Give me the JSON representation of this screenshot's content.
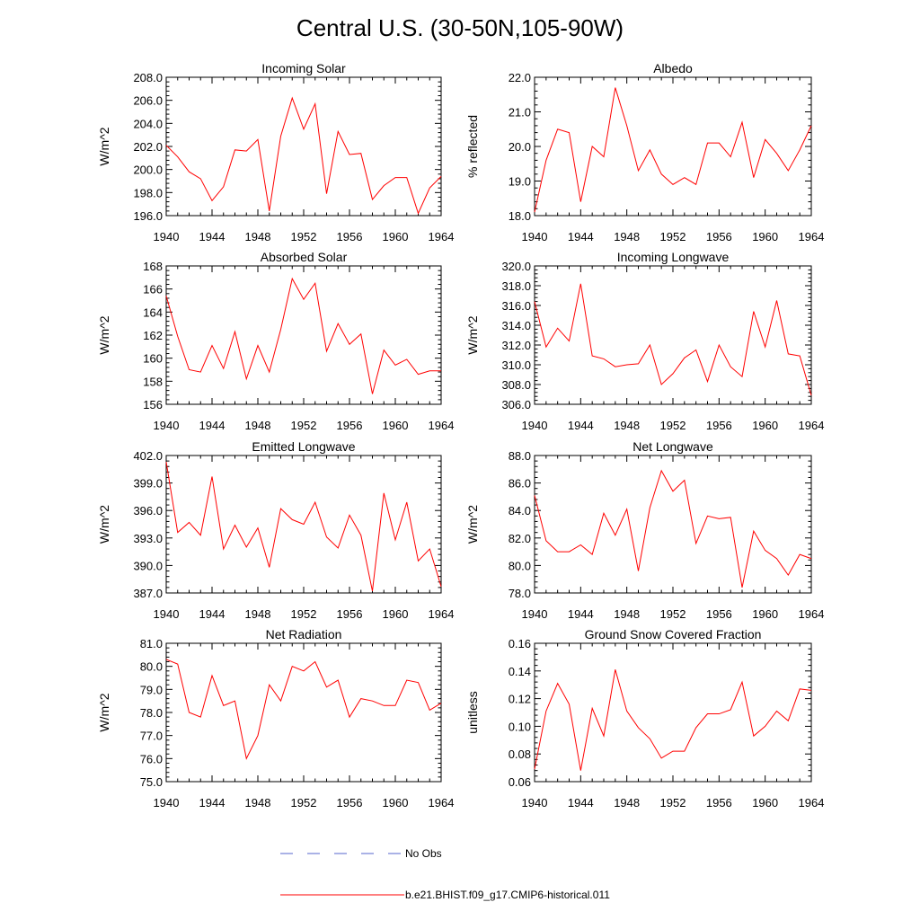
{
  "title": "Central U.S. (30-50N,105-90W)",
  "legend": {
    "obs_label": "No Obs",
    "obs_color": "#5566cc",
    "model_label": "b.e21.BHIST.f09_g17.CMIP6-historical.011",
    "model_color": "#ff0000"
  },
  "chart_data": [
    {
      "type": "line",
      "title": "Incoming Solar",
      "ylabel": "W/m^2",
      "x": [
        1940,
        1941,
        1942,
        1943,
        1944,
        1945,
        1946,
        1947,
        1948,
        1949,
        1950,
        1951,
        1952,
        1953,
        1954,
        1955,
        1956,
        1957,
        1958,
        1959,
        1960,
        1961,
        1962,
        1963,
        1964
      ],
      "xlim": [
        1940,
        1964
      ],
      "xticks": [
        "1940",
        "1944",
        "1948",
        "1952",
        "1956",
        "1960",
        "1964"
      ],
      "ylim": [
        196.0,
        208.0
      ],
      "yticks": [
        "196.0",
        "198.0",
        "200.0",
        "202.0",
        "204.0",
        "206.0",
        "208.0"
      ],
      "series": [
        {
          "values": [
            202.1,
            201.1,
            199.8,
            199.2,
            197.3,
            198.5,
            201.7,
            201.6,
            202.6,
            196.4,
            202.9,
            206.2,
            203.5,
            205.7,
            197.9,
            203.3,
            201.3,
            201.4,
            197.4,
            198.6,
            199.3,
            199.3,
            196.2,
            198.4,
            199.4
          ]
        }
      ]
    },
    {
      "type": "line",
      "title": "Albedo",
      "ylabel": "% reflected",
      "x": [
        1940,
        1941,
        1942,
        1943,
        1944,
        1945,
        1946,
        1947,
        1948,
        1949,
        1950,
        1951,
        1952,
        1953,
        1954,
        1955,
        1956,
        1957,
        1958,
        1959,
        1960,
        1961,
        1962,
        1963,
        1964
      ],
      "xlim": [
        1940,
        1964
      ],
      "xticks": [
        "1940",
        "1944",
        "1948",
        "1952",
        "1956",
        "1960",
        "1964"
      ],
      "ylim": [
        18.0,
        22.0
      ],
      "yticks": [
        "18.0",
        "19.0",
        "20.0",
        "21.0",
        "22.0"
      ],
      "series": [
        {
          "values": [
            18.1,
            19.6,
            20.5,
            20.4,
            18.4,
            20.0,
            19.7,
            21.7,
            20.6,
            19.3,
            19.9,
            19.2,
            18.9,
            19.1,
            18.9,
            20.1,
            20.1,
            19.7,
            20.7,
            19.1,
            20.2,
            19.8,
            19.3,
            19.9,
            20.6
          ]
        }
      ]
    },
    {
      "type": "line",
      "title": "Absorbed Solar",
      "ylabel": "W/m^2",
      "x": [
        1940,
        1941,
        1942,
        1943,
        1944,
        1945,
        1946,
        1947,
        1948,
        1949,
        1950,
        1951,
        1952,
        1953,
        1954,
        1955,
        1956,
        1957,
        1958,
        1959,
        1960,
        1961,
        1962,
        1963,
        1964
      ],
      "xlim": [
        1940,
        1964
      ],
      "xticks": [
        "1940",
        "1944",
        "1948",
        "1952",
        "1956",
        "1960",
        "1964"
      ],
      "ylim": [
        156,
        168
      ],
      "yticks": [
        "156",
        "158",
        "160",
        "162",
        "164",
        "166",
        "168"
      ],
      "series": [
        {
          "values": [
            165.4,
            161.9,
            159.0,
            158.8,
            161.1,
            159.1,
            162.3,
            158.2,
            161.1,
            158.8,
            162.5,
            166.9,
            165.1,
            166.5,
            160.6,
            163.0,
            161.2,
            162.1,
            156.9,
            160.7,
            159.4,
            159.9,
            158.6,
            158.9,
            158.9
          ]
        }
      ]
    },
    {
      "type": "line",
      "title": "Incoming Longwave",
      "ylabel": "W/m^2",
      "x": [
        1940,
        1941,
        1942,
        1943,
        1944,
        1945,
        1946,
        1947,
        1948,
        1949,
        1950,
        1951,
        1952,
        1953,
        1954,
        1955,
        1956,
        1957,
        1958,
        1959,
        1960,
        1961,
        1962,
        1963,
        1964
      ],
      "xlim": [
        1940,
        1964
      ],
      "xticks": [
        "1940",
        "1944",
        "1948",
        "1952",
        "1956",
        "1960",
        "1964"
      ],
      "ylim": [
        306.0,
        320.0
      ],
      "yticks": [
        "306.0",
        "308.0",
        "310.0",
        "312.0",
        "314.0",
        "316.0",
        "318.0",
        "320.0"
      ],
      "series": [
        {
          "values": [
            316.4,
            311.8,
            313.7,
            312.4,
            318.2,
            310.9,
            310.6,
            309.8,
            310.0,
            310.1,
            312.0,
            308.0,
            309.1,
            310.7,
            311.5,
            308.3,
            312.0,
            309.8,
            308.8,
            315.4,
            311.8,
            316.5,
            311.1,
            310.9,
            306.9
          ]
        }
      ]
    },
    {
      "type": "line",
      "title": "Emitted Longwave",
      "ylabel": "W/m^2",
      "x": [
        1940,
        1941,
        1942,
        1943,
        1944,
        1945,
        1946,
        1947,
        1948,
        1949,
        1950,
        1951,
        1952,
        1953,
        1954,
        1955,
        1956,
        1957,
        1958,
        1959,
        1960,
        1961,
        1962,
        1963,
        1964
      ],
      "xlim": [
        1940,
        1964
      ],
      "xticks": [
        "1940",
        "1944",
        "1948",
        "1952",
        "1956",
        "1960",
        "1964"
      ],
      "ylim": [
        387.0,
        402.0
      ],
      "yticks": [
        "387.0",
        "390.0",
        "393.0",
        "396.0",
        "399.0",
        "402.0"
      ],
      "series": [
        {
          "values": [
            401.3,
            393.6,
            394.7,
            393.3,
            399.7,
            391.8,
            394.4,
            392.0,
            394.1,
            389.8,
            396.2,
            395.0,
            394.5,
            396.9,
            393.1,
            391.9,
            395.5,
            393.3,
            387.2,
            397.9,
            392.8,
            396.9,
            390.5,
            391.8,
            387.7
          ]
        }
      ]
    },
    {
      "type": "line",
      "title": "Net Longwave",
      "ylabel": "W/m^2",
      "x": [
        1940,
        1941,
        1942,
        1943,
        1944,
        1945,
        1946,
        1947,
        1948,
        1949,
        1950,
        1951,
        1952,
        1953,
        1954,
        1955,
        1956,
        1957,
        1958,
        1959,
        1960,
        1961,
        1962,
        1963,
        1964
      ],
      "xlim": [
        1940,
        1964
      ],
      "xticks": [
        "1940",
        "1944",
        "1948",
        "1952",
        "1956",
        "1960",
        "1964"
      ],
      "ylim": [
        78.0,
        88.0
      ],
      "yticks": [
        "78.0",
        "80.0",
        "82.0",
        "84.0",
        "86.0",
        "88.0"
      ],
      "series": [
        {
          "values": [
            85.1,
            81.8,
            81.0,
            81.0,
            81.5,
            80.8,
            83.8,
            82.2,
            84.1,
            79.6,
            84.2,
            86.9,
            85.4,
            86.2,
            81.6,
            83.6,
            83.4,
            83.5,
            78.4,
            82.5,
            81.1,
            80.5,
            79.3,
            80.8,
            80.5
          ]
        }
      ]
    },
    {
      "type": "line",
      "title": "Net Radiation",
      "ylabel": "W/m^2",
      "x": [
        1940,
        1941,
        1942,
        1943,
        1944,
        1945,
        1946,
        1947,
        1948,
        1949,
        1950,
        1951,
        1952,
        1953,
        1954,
        1955,
        1956,
        1957,
        1958,
        1959,
        1960,
        1961,
        1962,
        1963,
        1964
      ],
      "xlim": [
        1940,
        1964
      ],
      "xticks": [
        "1940",
        "1944",
        "1948",
        "1952",
        "1956",
        "1960",
        "1964"
      ],
      "ylim": [
        75.0,
        81.0
      ],
      "yticks": [
        "75.0",
        "76.0",
        "77.0",
        "78.0",
        "79.0",
        "80.0",
        "81.0"
      ],
      "series": [
        {
          "values": [
            80.3,
            80.1,
            78.0,
            77.8,
            79.6,
            78.3,
            78.5,
            76.0,
            77.0,
            79.2,
            78.5,
            80.0,
            79.8,
            80.2,
            79.1,
            79.4,
            77.8,
            78.6,
            78.5,
            78.3,
            78.3,
            79.4,
            79.3,
            78.1,
            78.4
          ]
        }
      ]
    },
    {
      "type": "line",
      "title": "Ground Snow Covered Fraction",
      "ylabel": "unitless",
      "x": [
        1940,
        1941,
        1942,
        1943,
        1944,
        1945,
        1946,
        1947,
        1948,
        1949,
        1950,
        1951,
        1952,
        1953,
        1954,
        1955,
        1956,
        1957,
        1958,
        1959,
        1960,
        1961,
        1962,
        1963,
        1964
      ],
      "xlim": [
        1940,
        1964
      ],
      "xticks": [
        "1940",
        "1944",
        "1948",
        "1952",
        "1956",
        "1960",
        "1964"
      ],
      "ylim": [
        0.06,
        0.16
      ],
      "yticks": [
        "0.06",
        "0.08",
        "0.10",
        "0.12",
        "0.14",
        "0.16"
      ],
      "series": [
        {
          "values": [
            0.069,
            0.111,
            0.131,
            0.116,
            0.068,
            0.113,
            0.093,
            0.141,
            0.111,
            0.099,
            0.091,
            0.077,
            0.082,
            0.082,
            0.099,
            0.109,
            0.109,
            0.112,
            0.132,
            0.093,
            0.1,
            0.111,
            0.104,
            0.127,
            0.126
          ]
        }
      ]
    }
  ]
}
